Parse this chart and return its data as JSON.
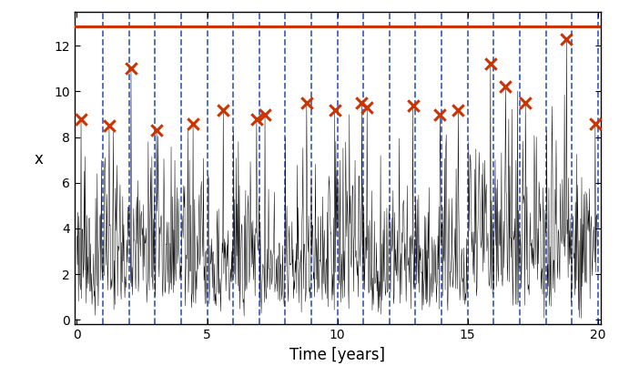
{
  "title": "",
  "xlabel": "Time [years]",
  "ylabel": "x",
  "n_years": 20,
  "points_per_year": 50,
  "seed": 99,
  "ylim": [
    -0.2,
    13.5
  ],
  "xlim": [
    -0.1,
    20.1
  ],
  "yticks": [
    0,
    2,
    4,
    6,
    8,
    10,
    12
  ],
  "xticks": [
    0,
    5,
    10,
    15,
    20
  ],
  "ts_color": "#000000",
  "vline_color": "#3355bb",
  "hline_color": "#cc3300",
  "marker_color": "#cc3300",
  "hline_y": 12.85,
  "ts_linewidth": 0.35,
  "vline_linewidth": 1.3,
  "hline_linewidth": 2.2,
  "marker_size": 80,
  "marker_linewidth": 2.2,
  "figsize": [
    6.8,
    4.24
  ],
  "dpi": 100,
  "bg_color": "#ffffff",
  "annual_max_x": [
    0.5,
    1.5,
    2.5,
    3.5,
    4.5,
    5.5,
    6.5,
    7.5,
    8.5,
    9.5,
    10.5,
    11.5,
    12.5,
    13.5,
    14.5,
    15.5,
    16.5,
    17.5,
    18.5,
    19.5
  ],
  "annual_max_y": [
    8.8,
    8.5,
    11.0,
    8.3,
    8.6,
    9.2,
    8.8,
    9.0,
    9.5,
    9.2,
    9.5,
    9.3,
    9.4,
    9.0,
    9.2,
    11.2,
    10.2,
    9.5,
    12.3,
    8.6
  ]
}
